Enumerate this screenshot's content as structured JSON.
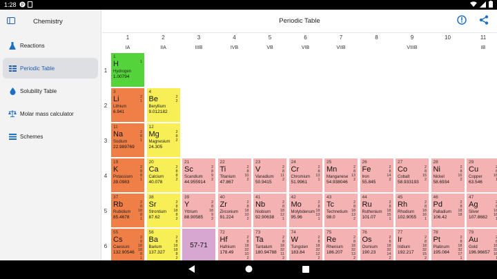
{
  "status_bar": {
    "time": "1:28",
    "icons_left": [
      "status-app-icon"
    ],
    "icons_right": [
      "wifi-icon",
      "signal-icon",
      "battery-icon"
    ]
  },
  "sidebar": {
    "title": "Chemistry",
    "items": [
      {
        "label": "Reactions",
        "icon": "flask-icon",
        "active": false
      },
      {
        "label": "Periodic Table",
        "icon": "table-grid-icon",
        "active": true
      },
      {
        "label": "Solubility Table",
        "icon": "drop-icon",
        "active": false
      },
      {
        "label": "Molar mass calculator",
        "icon": "scale-icon",
        "active": false
      },
      {
        "label": "Schemes",
        "icon": "list-icon",
        "active": false
      }
    ]
  },
  "topbar": {
    "title": "Periodic Table"
  },
  "groups": {
    "numbers": [
      "1",
      "2",
      "3",
      "4",
      "5",
      "6",
      "7",
      "8",
      "9",
      "10",
      "11"
    ],
    "labels": [
      "IA",
      "IIA",
      "IIIB",
      "IVB",
      "VB",
      "VIB",
      "VIIB",
      "",
      "VIIIB",
      "",
      "IB"
    ]
  },
  "periods": [
    "1",
    "2",
    "3",
    "4",
    "5",
    "6"
  ],
  "elements": [
    {
      "row": 0,
      "col": 0,
      "num": "1",
      "sym": "H",
      "name": "Hydrogen",
      "mass": "1.00794",
      "shells": "1",
      "cat": "h"
    },
    {
      "row": 1,
      "col": 0,
      "num": "3",
      "sym": "Li",
      "name": "Lithium",
      "mass": "6.941",
      "shells": "2\n1",
      "cat": "alk"
    },
    {
      "row": 1,
      "col": 1,
      "num": "4",
      "sym": "Be",
      "name": "Beryllium",
      "mass": "9.012182",
      "shells": "2\n2",
      "cat": "alkearth"
    },
    {
      "row": 2,
      "col": 0,
      "num": "11",
      "sym": "Na",
      "name": "Sodium",
      "mass": "22.989769",
      "shells": "2\n8\n1",
      "cat": "alk"
    },
    {
      "row": 2,
      "col": 1,
      "num": "12",
      "sym": "Mg",
      "name": "Magnesium",
      "mass": "24.305",
      "shells": "2\n8\n2",
      "cat": "alkearth"
    },
    {
      "row": 3,
      "col": 0,
      "num": "19",
      "sym": "K",
      "name": "Potassium",
      "mass": "39.0983",
      "shells": "2\n8\n8\n1",
      "cat": "alk"
    },
    {
      "row": 3,
      "col": 1,
      "num": "20",
      "sym": "Ca",
      "name": "Calcium",
      "mass": "40.078",
      "shells": "2\n8\n8\n2",
      "cat": "alkearth"
    },
    {
      "row": 3,
      "col": 2,
      "num": "21",
      "sym": "Sc",
      "name": "Scandium",
      "mass": "44.955914",
      "shells": "2\n8\n9\n2",
      "cat": "trans"
    },
    {
      "row": 3,
      "col": 3,
      "num": "22",
      "sym": "Ti",
      "name": "Titanium",
      "mass": "47.867",
      "shells": "2\n8\n10\n2",
      "cat": "trans"
    },
    {
      "row": 3,
      "col": 4,
      "num": "23",
      "sym": "V",
      "name": "Vanadium",
      "mass": "50.9415",
      "shells": "2\n8\n11\n2",
      "cat": "trans"
    },
    {
      "row": 3,
      "col": 5,
      "num": "24",
      "sym": "Cr",
      "name": "Chromium",
      "mass": "51.9961",
      "shells": "2\n8\n13\n1",
      "cat": "trans"
    },
    {
      "row": 3,
      "col": 6,
      "num": "25",
      "sym": "Mn",
      "name": "Manganese",
      "mass": "54.938046",
      "shells": "2\n8\n13\n2",
      "cat": "trans"
    },
    {
      "row": 3,
      "col": 7,
      "num": "26",
      "sym": "Fe",
      "name": "Iron",
      "mass": "55.845",
      "shells": "2\n8\n14\n2",
      "cat": "trans"
    },
    {
      "row": 3,
      "col": 8,
      "num": "27",
      "sym": "Co",
      "name": "Cobalt",
      "mass": "58.933193",
      "shells": "2\n8\n15\n2",
      "cat": "trans"
    },
    {
      "row": 3,
      "col": 9,
      "num": "28",
      "sym": "Ni",
      "name": "Nickel",
      "mass": "58.6934",
      "shells": "2\n8\n16\n2",
      "cat": "trans"
    },
    {
      "row": 3,
      "col": 10,
      "num": "29",
      "sym": "Cu",
      "name": "Copper",
      "mass": "63.546",
      "shells": "2\n8\n18\n1",
      "cat": "trans"
    },
    {
      "row": 4,
      "col": 0,
      "num": "37",
      "sym": "Rb",
      "name": "Rubidium",
      "mass": "85.4678",
      "shells": "2\n8\n18\n8\n1",
      "cat": "alk"
    },
    {
      "row": 4,
      "col": 1,
      "num": "38",
      "sym": "Sr",
      "name": "Strontium",
      "mass": "87.62",
      "shells": "2\n8\n18\n8\n2",
      "cat": "alkearth"
    },
    {
      "row": 4,
      "col": 2,
      "num": "39",
      "sym": "Y",
      "name": "Yttrium",
      "mass": "88.90585",
      "shells": "2\n8\n18\n9\n2",
      "cat": "trans"
    },
    {
      "row": 4,
      "col": 3,
      "num": "40",
      "sym": "Zr",
      "name": "Zirconium",
      "mass": "91.224",
      "shells": "2\n8\n18\n10\n2",
      "cat": "trans"
    },
    {
      "row": 4,
      "col": 4,
      "num": "41",
      "sym": "Nb",
      "name": "Niobium",
      "mass": "92.90638",
      "shells": "2\n8\n18\n12\n1",
      "cat": "trans"
    },
    {
      "row": 4,
      "col": 5,
      "num": "42",
      "sym": "Mo",
      "name": "Molybdenum",
      "mass": "95.96",
      "shells": "2\n8\n18\n13\n1",
      "cat": "trans"
    },
    {
      "row": 4,
      "col": 6,
      "num": "43",
      "sym": "Tc",
      "name": "Technetium",
      "mass": "98.0",
      "shells": "2\n8\n18\n13\n2",
      "cat": "trans"
    },
    {
      "row": 4,
      "col": 7,
      "num": "44",
      "sym": "Ru",
      "name": "Ruthenium",
      "mass": "101.07",
      "shells": "2\n8\n18\n15\n1",
      "cat": "trans"
    },
    {
      "row": 4,
      "col": 8,
      "num": "45",
      "sym": "Rh",
      "name": "Rhodium",
      "mass": "102.9055",
      "shells": "2\n8\n18\n16\n1",
      "cat": "trans"
    },
    {
      "row": 4,
      "col": 9,
      "num": "46",
      "sym": "Pd",
      "name": "Palladium",
      "mass": "106.42",
      "shells": "2\n8\n18\n18",
      "cat": "trans"
    },
    {
      "row": 4,
      "col": 10,
      "num": "47",
      "sym": "Ag",
      "name": "Silver",
      "mass": "107.8682",
      "shells": "2\n8\n18\n18\n1",
      "cat": "trans"
    },
    {
      "row": 5,
      "col": 0,
      "num": "55",
      "sym": "Cs",
      "name": "Caesium",
      "mass": "132.90546",
      "shells": "2\n8\n18\n18\n8\n1",
      "cat": "alk"
    },
    {
      "row": 5,
      "col": 1,
      "num": "56",
      "sym": "Ba",
      "name": "Barium",
      "mass": "137.327",
      "shells": "2\n8\n18\n18\n8\n2",
      "cat": "alkearth"
    },
    {
      "row": 5,
      "col": 2,
      "num": "",
      "sym": "57-71",
      "name": "",
      "mass": "",
      "shells": "",
      "cat": "lanth"
    },
    {
      "row": 5,
      "col": 3,
      "num": "72",
      "sym": "Hf",
      "name": "Hafnium",
      "mass": "178.49",
      "shells": "2\n8\n18\n32\n10\n2",
      "cat": "trans"
    },
    {
      "row": 5,
      "col": 4,
      "num": "73",
      "sym": "Ta",
      "name": "Tantalum",
      "mass": "180.94788",
      "shells": "2\n8\n18\n32\n11\n2",
      "cat": "trans"
    },
    {
      "row": 5,
      "col": 5,
      "num": "74",
      "sym": "W",
      "name": "Tungsten",
      "mass": "183.84",
      "shells": "2\n8\n18\n32\n12\n2",
      "cat": "trans"
    },
    {
      "row": 5,
      "col": 6,
      "num": "75",
      "sym": "Re",
      "name": "Rhenium",
      "mass": "186.207",
      "shells": "2\n8\n18\n32\n13\n2",
      "cat": "trans"
    },
    {
      "row": 5,
      "col": 7,
      "num": "76",
      "sym": "Os",
      "name": "Osmium",
      "mass": "190.23",
      "shells": "2\n8\n18\n32\n14\n2",
      "cat": "trans"
    },
    {
      "row": 5,
      "col": 8,
      "num": "77",
      "sym": "Ir",
      "name": "Iridium",
      "mass": "192.217",
      "shells": "2\n8\n18\n32\n15\n2",
      "cat": "trans"
    },
    {
      "row": 5,
      "col": 9,
      "num": "78",
      "sym": "Pt",
      "name": "Platinum",
      "mass": "195.084",
      "shells": "2\n8\n18\n32\n17\n1",
      "cat": "trans"
    },
    {
      "row": 5,
      "col": 10,
      "num": "79",
      "sym": "Au",
      "name": "Gold",
      "mass": "196.96657",
      "shells": "2\n8\n18\n32\n18\n1",
      "cat": "trans"
    }
  ],
  "colors": {
    "hydrogen": "#54d43a",
    "alkali": "#f07f47",
    "alkaline_earth": "#f8ee55",
    "transition": "#f5b2b2",
    "lanthanide": "#d7a7d1",
    "accent": "#1e5da8"
  }
}
